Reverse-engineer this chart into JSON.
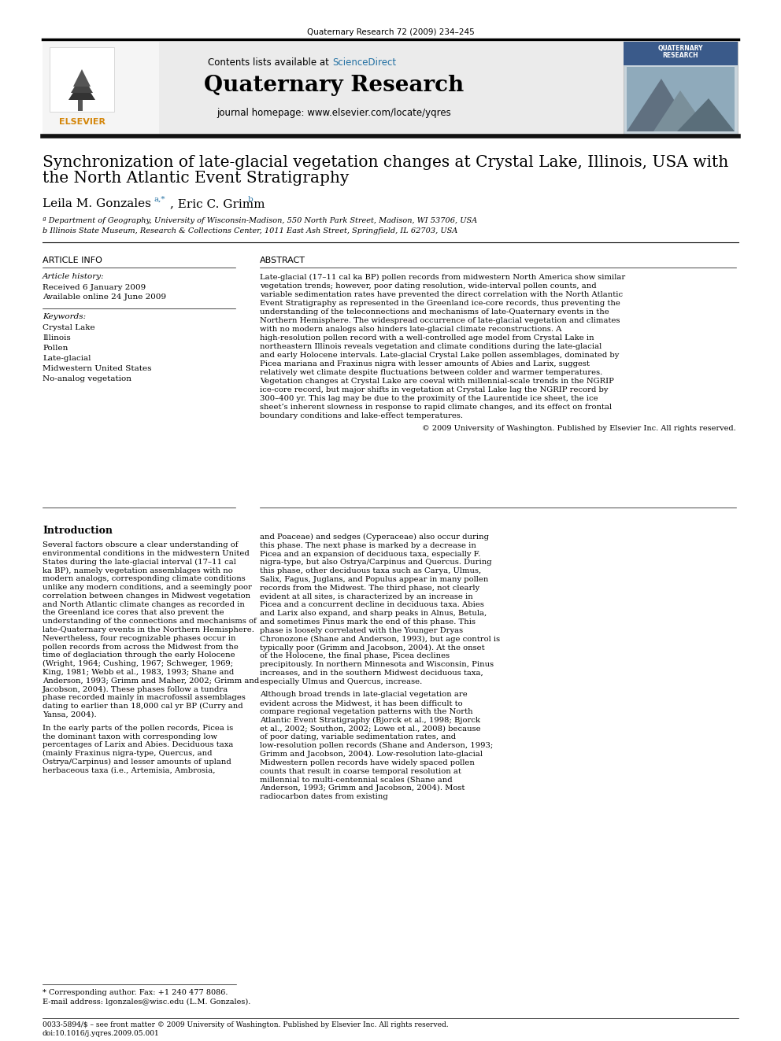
{
  "journal_ref": "Quaternary Research 72 (2009) 234–245",
  "contents_line": "Contents lists available at ScienceDirect",
  "sciencedirect_color": "#1a5276",
  "journal_name": "Quaternary Research",
  "journal_homepage": "journal homepage: www.elsevier.com/locate/yqres",
  "title_line1": "Synchronization of late-glacial vegetation changes at Crystal Lake, Illinois, USA with",
  "title_line2": "the North Atlantic Event Stratigraphy",
  "authors": "Leila M. Gonzales",
  "authors2": ", Eric C. Grimm",
  "author_sup1": "a,*",
  "author_sup2": "b",
  "affil1": "ª Department of Geography, University of Wisconsin-Madison, 550 North Park Street, Madison, WI 53706, USA",
  "affil2": "b Illinois State Museum, Research & Collections Center, 1011 East Ash Street, Springfield, IL 62703, USA",
  "article_info_header": "ARTICLE INFO",
  "abstract_header": "ABSTRACT",
  "article_history_label": "Article history:",
  "received": "Received 6 January 2009",
  "available": "Available online 24 June 2009",
  "keywords_label": "Keywords:",
  "keywords": [
    "Crystal Lake",
    "Illinois",
    "Pollen",
    "Late-glacial",
    "Midwestern United States",
    "No-analog vegetation"
  ],
  "abstract_text": "Late-glacial (17–11 cal ka BP) pollen records from midwestern North America show similar vegetation trends; however, poor dating resolution, wide-interval pollen counts, and variable sedimentation rates have prevented the direct correlation with the North Atlantic Event Stratigraphy as represented in the Greenland ice-core records, thus preventing the understanding of the teleconnections and mechanisms of late-Quaternary events in the Northern Hemisphere. The widespread occurrence of late-glacial vegetation and climates with no modern analogs also hinders late-glacial climate reconstructions. A high-resolution pollen record with a well-controlled age model from Crystal Lake in northeastern Illinois reveals vegetation and climate conditions during the late-glacial and early Holocene intervals. Late-glacial Crystal Lake pollen assemblages, dominated by Picea mariana and Fraxinus nigra with lesser amounts of Abies and Larix, suggest relatively wet climate despite fluctuations between colder and warmer temperatures. Vegetation changes at Crystal Lake are coeval with millennial-scale trends in the NGRIP ice-core record, but major shifts in vegetation at Crystal Lake lag the NGRIP record by 300–400 yr. This lag may be due to the proximity of the Laurentide ice sheet, the ice sheet’s inherent slowness in response to rapid climate changes, and its effect on frontal boundary conditions and lake-effect temperatures.",
  "copyright_line": "© 2009 University of Washington. Published by Elsevier Inc. All rights reserved.",
  "intro_header": "Introduction",
  "intro_col1": "Several factors obscure a clear understanding of environmental conditions in the midwestern United States during the late-glacial interval (17–11 cal ka BP), namely vegetation assemblages with no modern analogs, corresponding climate conditions unlike any modern conditions, and a seemingly poor correlation between changes in Midwest vegetation and North Atlantic climate changes as recorded in the Greenland ice cores that also prevent the understanding of the connections and mechanisms of late-Quaternary events in the Northern Hemisphere. Nevertheless, four recognizable phases occur in pollen records from across the Midwest from the time of deglaciation through the early Holocene (Wright, 1964; Cushing, 1967; Schweger, 1969; King, 1981; Webb et al., 1983, 1993; Shane and Anderson, 1993; Grimm and Maher, 2002; Grimm and Jacobson, 2004). These phases follow a tundra phase recorded mainly in macrofossil assemblages dating to earlier than 18,000 cal yr BP (Curry and Yansa, 2004).",
  "intro_col1_p2": "    In the early parts of the pollen records, Picea is the dominant taxon with corresponding low percentages of Larix and Abies. Deciduous taxa (mainly Fraxinus nigra-type, Quercus, and Ostrya/Carpinus) and lesser amounts of upland herbaceous taxa (i.e., Artemisia, Ambrosia,",
  "intro_col2": "and Poaceae) and sedges (Cyperaceae) also occur during this phase. The next phase is marked by a decrease in Picea and an expansion of deciduous taxa, especially F. nigra-type, but also Ostrya/Carpinus and Quercus. During this phase, other deciduous taxa such as Carya, Ulmus, Salix, Fagus, Juglans, and Populus appear in many pollen records from the Midwest. The third phase, not clearly evident at all sites, is characterized by an increase in Picea and a concurrent decline in deciduous taxa. Abies and Larix also expand, and sharp peaks in Alnus, Betula, and sometimes Pinus mark the end of this phase. This phase is loosely correlated with the Younger Dryas Chronozone (Shane and Anderson, 1993), but age control is typically poor (Grimm and Jacobson, 2004). At the onset of the Holocene, the final phase, Picea declines precipitously. In northern Minnesota and Wisconsin, Pinus increases, and in the southern Midwest deciduous taxa, especially Ulmus and Quercus, increase.",
  "intro_col2_p2": "    Although broad trends in late-glacial vegetation are evident across the Midwest, it has been difficult to compare regional vegetation patterns with the North Atlantic Event Stratigraphy (Bjorck et al., 1998; Bjorck et al., 2002; Southon, 2002; Lowe et al., 2008) because of poor dating, variable sedimentation rates, and low-resolution pollen records (Shane and Anderson, 1993; Grimm and Jacobson, 2004). Low-resolution late-glacial Midwestern pollen records have widely spaced pollen counts that result in coarse temporal resolution at millennial to multi-centennial scales (Shane and Anderson, 1993; Grimm and Jacobson, 2004). Most radiocarbon dates from existing",
  "footnote_star": "* Corresponding author. Fax: +1 240 477 8086.",
  "footnote_email": "E-mail address: lgonzales@wisc.edu (L.M. Gonzales).",
  "bottom_line1": "0033-5894/$ – see front matter © 2009 University of Washington. Published by Elsevier Inc. All rights reserved.",
  "bottom_line2": "doi:10.1016/j.yqres.2009.05.001",
  "header_bg": "#ebebeb",
  "link_color": "#2471a3",
  "elsevier_color": "#d4860a"
}
